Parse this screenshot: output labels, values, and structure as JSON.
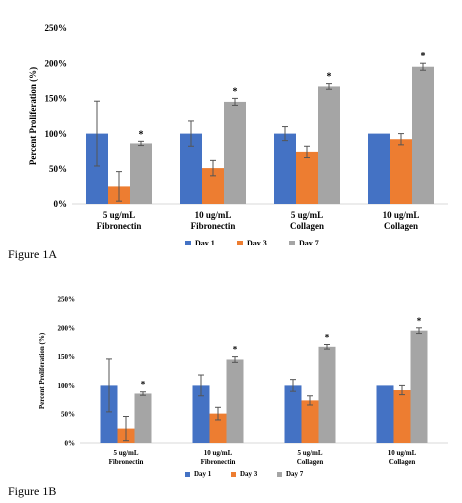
{
  "captions": [
    "Figure 1A",
    "Figure 1B"
  ],
  "chart_data": [
    {
      "type": "bar",
      "categories": [
        [
          "5 ug/mL",
          "Fibronectin"
        ],
        [
          "10 ug/mL",
          "Fibronectin"
        ],
        [
          "5 ug/mL",
          "Collagen"
        ],
        [
          "10 ug/mL",
          "Collagen"
        ]
      ],
      "series": [
        {
          "name": "Day 1",
          "color": "#4472c4",
          "values": [
            100,
            100,
            100,
            100
          ],
          "errors": [
            46,
            18,
            10,
            0
          ]
        },
        {
          "name": "Day 3",
          "color": "#ed7d31",
          "values": [
            25,
            51,
            74,
            92
          ],
          "errors": [
            21,
            11,
            8,
            8
          ]
        },
        {
          "name": "Day 7",
          "color": "#a5a5a5",
          "values": [
            86,
            145,
            167,
            195
          ],
          "errors": [
            3,
            5,
            4,
            5
          ]
        }
      ],
      "annotations": [
        {
          "series": "Day 7",
          "category": 0,
          "text": "*"
        },
        {
          "series": "Day 7",
          "category": 1,
          "text": "*"
        },
        {
          "series": "Day 7",
          "category": 2,
          "text": "*"
        },
        {
          "series": "Day 7",
          "category": 3,
          "text": "*"
        }
      ],
      "title": "",
      "xlabel": "",
      "ylabel": "Percent Proliferation (%)",
      "ylim": [
        0,
        250
      ],
      "yticks": [
        0,
        50,
        100,
        150,
        200,
        250
      ],
      "ytick_labels": [
        "0%",
        "50%",
        "100%",
        "150%",
        "200%",
        "250%"
      ],
      "legend": "bottom",
      "grid": false
    },
    {
      "type": "bar",
      "categories": [
        [
          "5 ug/mL",
          "Fibronectin"
        ],
        [
          "10 ug/mL",
          "Fibronectin"
        ],
        [
          "5 ug/mL",
          "Collagen"
        ],
        [
          "10 ug/mL",
          "Collagen"
        ]
      ],
      "series": [
        {
          "name": "Day 1",
          "color": "#4472c4",
          "values": [
            100,
            100,
            100,
            100
          ],
          "errors": [
            46,
            18,
            10,
            0
          ]
        },
        {
          "name": "Day 3",
          "color": "#ed7d31",
          "values": [
            25,
            51,
            74,
            92
          ],
          "errors": [
            21,
            11,
            8,
            8
          ]
        },
        {
          "name": "Day 7",
          "color": "#a5a5a5",
          "values": [
            86,
            145,
            167,
            195
          ],
          "errors": [
            3,
            5,
            4,
            5
          ]
        }
      ],
      "annotations": [
        {
          "series": "Day 7",
          "category": 0,
          "text": "*"
        },
        {
          "series": "Day 7",
          "category": 1,
          "text": "*"
        },
        {
          "series": "Day 7",
          "category": 2,
          "text": "*"
        },
        {
          "series": "Day 7",
          "category": 3,
          "text": "*"
        }
      ],
      "title": "",
      "xlabel": "",
      "ylabel": "Percent Proliferation (%)",
      "ylim": [
        0,
        250
      ],
      "yticks": [
        0,
        50,
        100,
        150,
        200,
        250
      ],
      "ytick_labels": [
        "0%",
        "50%",
        "100%",
        "150%",
        "200%",
        "250%"
      ],
      "legend": "bottom",
      "grid": false
    }
  ]
}
